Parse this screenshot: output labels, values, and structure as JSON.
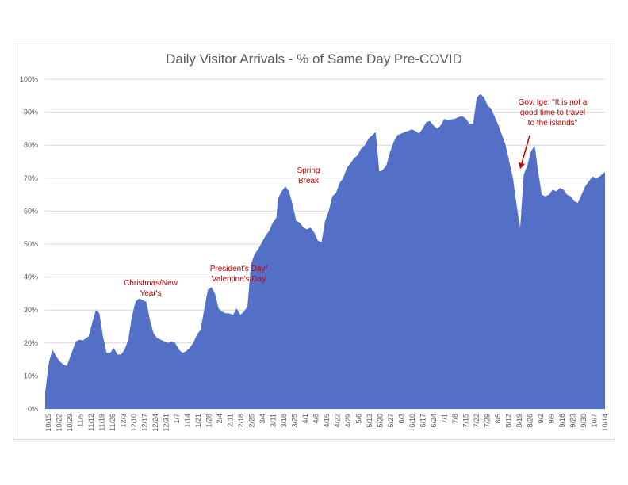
{
  "chart_data": {
    "type": "area",
    "title": "Daily Visitor Arrivals - % of Same Day Pre-COVID",
    "xlabel": "",
    "ylabel": "",
    "ylim": [
      0,
      100
    ],
    "y_tick_labels": [
      "0%",
      "10%",
      "20%",
      "30%",
      "40%",
      "50%",
      "60%",
      "70%",
      "80%",
      "90%",
      "100%"
    ],
    "x_tick_labels": [
      "10/15",
      "10/22",
      "10/29",
      "11/5",
      "11/12",
      "11/19",
      "11/26",
      "12/3",
      "12/10",
      "12/17",
      "12/24",
      "12/31",
      "1/7",
      "1/14",
      "1/21",
      "1/28",
      "2/4",
      "2/11",
      "2/18",
      "2/25",
      "3/4",
      "3/11",
      "3/18",
      "3/25",
      "4/1",
      "4/8",
      "4/15",
      "4/22",
      "4/29",
      "5/6",
      "5/13",
      "5/20",
      "5/27",
      "6/3",
      "6/10",
      "6/17",
      "6/24",
      "7/1",
      "7/8",
      "7/15",
      "7/22",
      "7/29",
      "8/5",
      "8/12",
      "8/19",
      "8/26",
      "9/2",
      "9/9",
      "9/16",
      "9/23",
      "9/30",
      "10/7",
      "10/14"
    ],
    "series": [
      {
        "color": "#5470c6",
        "points": [
          [
            0,
            5
          ],
          [
            2,
            14
          ],
          [
            4,
            18
          ],
          [
            6,
            16
          ],
          [
            8,
            14.5
          ],
          [
            10,
            13.5
          ],
          [
            12,
            13
          ],
          [
            14,
            16
          ],
          [
            17,
            20.5
          ],
          [
            19,
            21
          ],
          [
            21,
            20.8
          ],
          [
            24,
            22
          ],
          [
            26,
            26
          ],
          [
            28,
            30
          ],
          [
            30,
            29
          ],
          [
            32,
            22
          ],
          [
            34,
            17
          ],
          [
            36,
            17
          ],
          [
            38,
            18.5
          ],
          [
            40,
            16.5
          ],
          [
            42,
            16.5
          ],
          [
            44,
            18
          ],
          [
            46,
            21
          ],
          [
            48,
            28
          ],
          [
            50,
            32.5
          ],
          [
            52,
            33.5
          ],
          [
            54,
            33
          ],
          [
            56,
            32.5
          ],
          [
            58,
            27
          ],
          [
            60,
            23
          ],
          [
            62,
            21.5
          ],
          [
            64,
            21
          ],
          [
            66,
            20.5
          ],
          [
            68,
            20
          ],
          [
            70,
            20.5
          ],
          [
            72,
            20
          ],
          [
            74,
            18
          ],
          [
            76,
            17
          ],
          [
            78,
            17.5
          ],
          [
            80,
            18.5
          ],
          [
            82,
            20
          ],
          [
            84,
            22.5
          ],
          [
            86,
            24
          ],
          [
            88,
            30
          ],
          [
            90,
            36
          ],
          [
            92,
            37
          ],
          [
            94,
            35
          ],
          [
            96,
            30.5
          ],
          [
            98,
            29.5
          ],
          [
            100,
            29
          ],
          [
            102,
            29
          ],
          [
            104,
            28.5
          ],
          [
            106,
            30.5
          ],
          [
            108,
            28.5
          ],
          [
            110,
            29.5
          ],
          [
            112,
            31
          ],
          [
            114,
            44
          ],
          [
            116,
            47
          ],
          [
            118,
            48.5
          ],
          [
            120,
            50.5
          ],
          [
            122,
            52.5
          ],
          [
            124,
            54
          ],
          [
            126,
            56.5
          ],
          [
            128,
            58
          ],
          [
            129,
            64
          ],
          [
            131,
            66
          ],
          [
            133,
            67.5
          ],
          [
            135,
            66
          ],
          [
            137,
            62
          ],
          [
            139,
            57
          ],
          [
            141,
            56.5
          ],
          [
            143,
            55
          ],
          [
            145,
            54.5
          ],
          [
            147,
            55
          ],
          [
            149,
            53.5
          ],
          [
            151,
            51
          ],
          [
            153,
            50.5
          ],
          [
            155,
            57
          ],
          [
            157,
            60
          ],
          [
            159,
            64.5
          ],
          [
            161,
            65.5
          ],
          [
            163,
            68.5
          ],
          [
            165,
            70
          ],
          [
            167,
            73
          ],
          [
            169,
            74.5
          ],
          [
            171,
            76
          ],
          [
            173,
            77
          ],
          [
            175,
            79
          ],
          [
            177,
            80
          ],
          [
            179,
            82
          ],
          [
            181,
            83
          ],
          [
            183,
            84
          ],
          [
            185,
            72
          ],
          [
            187,
            72.5
          ],
          [
            189,
            74
          ],
          [
            191,
            78
          ],
          [
            193,
            81
          ],
          [
            195,
            83
          ],
          [
            197,
            83.5
          ],
          [
            199,
            84
          ],
          [
            201,
            84.3
          ],
          [
            203,
            84.8
          ],
          [
            205,
            84.3
          ],
          [
            207,
            83.5
          ],
          [
            209,
            85
          ],
          [
            211,
            87
          ],
          [
            213,
            87.3
          ],
          [
            215,
            86
          ],
          [
            217,
            85
          ],
          [
            219,
            86
          ],
          [
            221,
            88
          ],
          [
            223,
            87.5
          ],
          [
            225,
            87.8
          ],
          [
            227,
            88
          ],
          [
            229,
            88.5
          ],
          [
            231,
            88.8
          ],
          [
            233,
            88
          ],
          [
            235,
            86.5
          ],
          [
            237,
            86.5
          ],
          [
            239,
            94.5
          ],
          [
            241,
            95.5
          ],
          [
            243,
            94.5
          ],
          [
            245,
            92
          ],
          [
            247,
            91
          ],
          [
            249,
            88.5
          ],
          [
            251,
            86
          ],
          [
            253,
            83
          ],
          [
            255,
            80
          ],
          [
            257,
            75
          ],
          [
            259,
            70
          ],
          [
            261,
            62
          ],
          [
            263,
            55
          ],
          [
            265,
            71
          ],
          [
            267,
            74
          ],
          [
            269,
            78
          ],
          [
            271,
            80
          ],
          [
            273,
            72
          ],
          [
            275,
            65
          ],
          [
            277,
            64.5
          ],
          [
            279,
            65
          ],
          [
            281,
            66.5
          ],
          [
            283,
            66
          ],
          [
            285,
            67
          ],
          [
            287,
            66.5
          ],
          [
            289,
            65
          ],
          [
            291,
            64.5
          ],
          [
            293,
            63
          ],
          [
            295,
            62.5
          ],
          [
            297,
            65
          ],
          [
            299,
            67.5
          ],
          [
            301,
            69
          ],
          [
            303,
            70.5
          ],
          [
            305,
            70
          ],
          [
            307,
            70.5
          ],
          [
            309,
            71.5
          ],
          [
            310,
            71.8
          ]
        ]
      }
    ],
    "x_day_span": 310,
    "annotations": [
      {
        "id": "christmas",
        "lines": [
          "Christmas/New",
          "Year's"
        ],
        "day": 52
      },
      {
        "id": "presidents",
        "lines": [
          "President's Day/",
          "Valentine's Day"
        ],
        "day": 91
      },
      {
        "id": "spring",
        "lines": [
          "Spring",
          "Break"
        ],
        "day": 133
      },
      {
        "id": "ige",
        "lines": [
          "Gov. Ige: \"It is not a",
          "good time to travel",
          "to the islands\""
        ],
        "day": 259
      }
    ]
  }
}
